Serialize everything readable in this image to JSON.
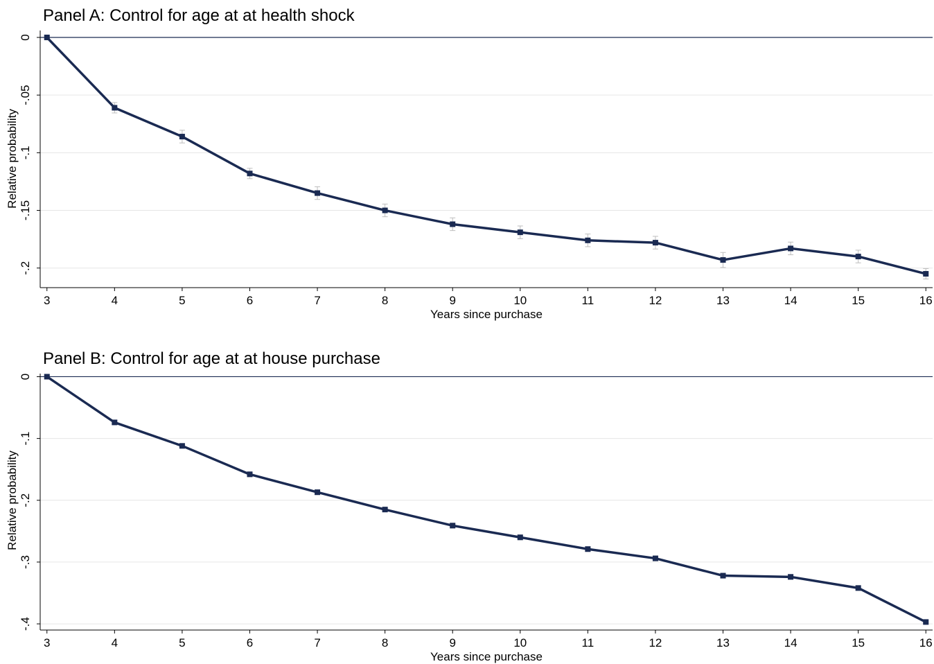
{
  "chart_data": [
    {
      "type": "line",
      "title": "Panel A: Control for age at at health shock",
      "xlabel": "Years since purchase",
      "ylabel": "Relative probability",
      "x": [
        3,
        4,
        5,
        6,
        7,
        8,
        9,
        10,
        11,
        12,
        13,
        14,
        15,
        16
      ],
      "x_tick_labels": [
        "3",
        "4",
        "5",
        "6",
        "7",
        "8",
        "9",
        "10",
        "11",
        "12",
        "13",
        "14",
        "15",
        "16"
      ],
      "xlim": [
        2.9,
        16.1
      ],
      "ylim": [
        -0.217,
        0.006
      ],
      "y_ticks": [
        0,
        -0.05,
        -0.1,
        -0.15,
        -0.2
      ],
      "y_tick_labels": [
        "0",
        "-.05",
        "-.1",
        "-.15",
        "-.2"
      ],
      "reference_line_y": 0,
      "grid": true,
      "series": [
        {
          "values": [
            0,
            -0.061,
            -0.086,
            -0.118,
            -0.135,
            -0.15,
            -0.162,
            -0.169,
            -0.176,
            -0.178,
            -0.193,
            -0.183,
            -0.19,
            -0.205
          ],
          "ci_low": [
            0,
            -0.0655,
            -0.0915,
            -0.1225,
            -0.1405,
            -0.1555,
            -0.1675,
            -0.1745,
            -0.1815,
            -0.1835,
            -0.1995,
            -0.1885,
            -0.1955,
            -0.2095
          ],
          "ci_high": [
            0,
            -0.0565,
            -0.0805,
            -0.1135,
            -0.1295,
            -0.1445,
            -0.1565,
            -0.1635,
            -0.1705,
            -0.1725,
            -0.1865,
            -0.1775,
            -0.1845,
            -0.2005
          ]
        }
      ]
    },
    {
      "type": "line",
      "title": "Panel B: Control for age at at house purchase",
      "xlabel": "Years since purchase",
      "ylabel": "Relative probability",
      "x": [
        3,
        4,
        5,
        6,
        7,
        8,
        9,
        10,
        11,
        12,
        13,
        14,
        15,
        16
      ],
      "x_tick_labels": [
        "3",
        "4",
        "5",
        "6",
        "7",
        "8",
        "9",
        "10",
        "11",
        "12",
        "13",
        "14",
        "15",
        "16"
      ],
      "xlim": [
        2.9,
        16.1
      ],
      "ylim": [
        -0.41,
        0.005
      ],
      "y_ticks": [
        0,
        -0.1,
        -0.2,
        -0.3,
        -0.4
      ],
      "y_tick_labels": [
        "0",
        "-.1",
        "-.2",
        "-.3",
        "-.4"
      ],
      "reference_line_y": 0,
      "grid": true,
      "series": [
        {
          "values": [
            0,
            -0.074,
            -0.112,
            -0.158,
            -0.187,
            -0.215,
            -0.241,
            -0.26,
            -0.279,
            -0.294,
            -0.322,
            -0.324,
            -0.342,
            -0.397
          ],
          "ci_low": [
            0,
            -0.077,
            -0.115,
            -0.162,
            -0.191,
            -0.218,
            -0.245,
            -0.264,
            -0.283,
            -0.298,
            -0.326,
            -0.328,
            -0.346,
            -0.399
          ],
          "ci_high": [
            0,
            -0.071,
            -0.109,
            -0.154,
            -0.183,
            -0.212,
            -0.237,
            -0.256,
            -0.275,
            -0.29,
            -0.318,
            -0.32,
            -0.338,
            -0.395
          ]
        }
      ]
    }
  ],
  "colors": {
    "series_line": "#1a2a52",
    "marker": "#1a2a52",
    "ci": "#bdbdbd",
    "grid": "#e6e6e6",
    "reference_line": "#1a2a52",
    "axis": "#000000"
  }
}
